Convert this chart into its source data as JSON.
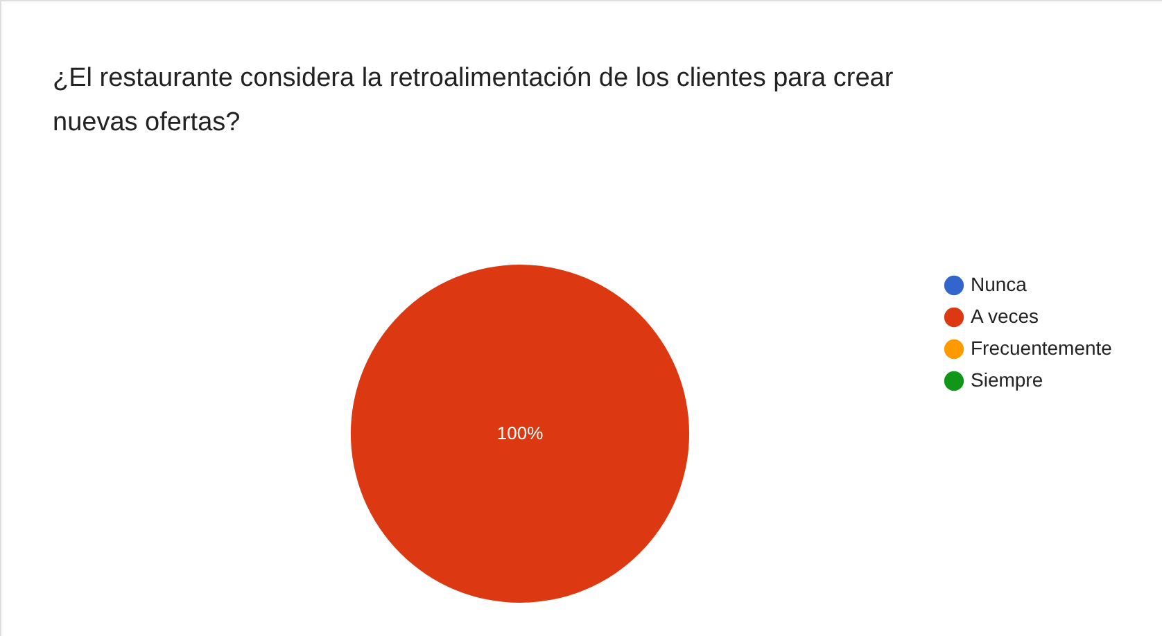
{
  "chart_data": {
    "type": "pie",
    "title": "¿El restaurante considera la retroalimentación de los clientes para crear nuevas ofertas?",
    "categories": [
      "Nunca",
      "A veces",
      "Frecuentemente",
      "Siempre"
    ],
    "values": [
      0,
      100,
      0,
      0
    ],
    "colors": [
      "#3366cc",
      "#dc3912",
      "#ff9900",
      "#109618"
    ],
    "value_labels": [
      null,
      "100%",
      null,
      null
    ],
    "legend": "right"
  }
}
